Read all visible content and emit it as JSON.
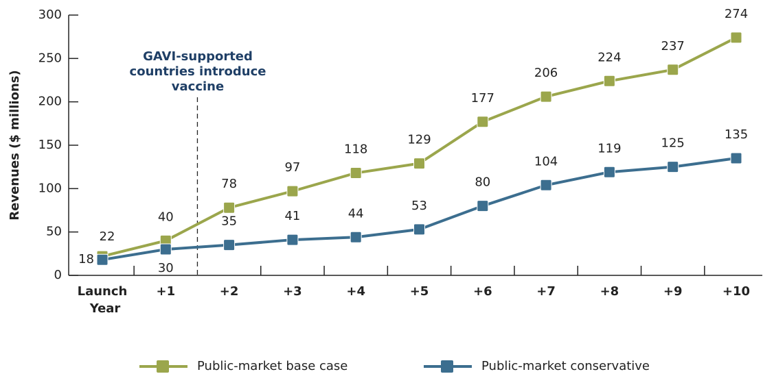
{
  "chart_data": {
    "type": "line",
    "y_label": "Revenues ($ millions)",
    "annotation": [
      "GAVI-supported",
      "countries introduce",
      "vaccine"
    ],
    "categories": [
      "Launch Year",
      "+1",
      "+2",
      "+3",
      "+4",
      "+5",
      "+6",
      "+7",
      "+8",
      "+9",
      "+10"
    ],
    "series": [
      {
        "name": "Public-market base case",
        "color": "#9ba64c",
        "values": [
          22,
          40,
          78,
          97,
          118,
          129,
          177,
          206,
          224,
          237,
          274
        ]
      },
      {
        "name": "Public-market conservative",
        "color": "#3c6e8f",
        "values": [
          18,
          30,
          35,
          41,
          44,
          53,
          80,
          104,
          119,
          125,
          135
        ]
      }
    ],
    "ylim": [
      0,
      300
    ],
    "yticks": [
      0,
      50,
      100,
      150,
      200,
      250,
      300
    ]
  }
}
